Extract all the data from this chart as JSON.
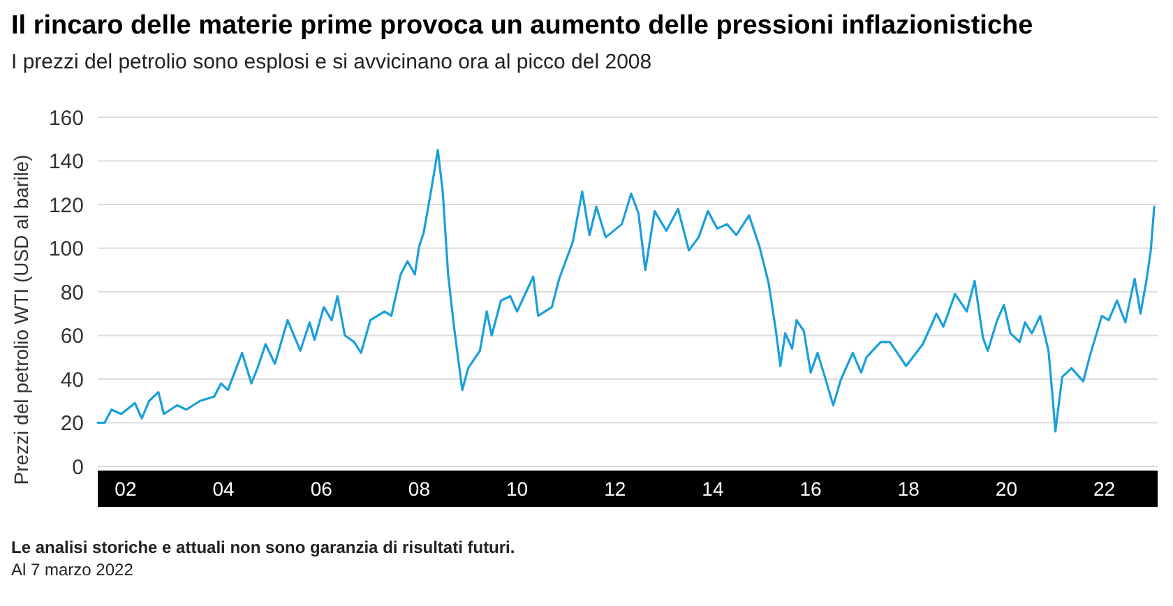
{
  "chart_data": {
    "type": "line",
    "title": "Il rincaro delle materie prime provoca un aumento delle pressioni inflazionistiche",
    "subtitle": "I prezzi del petrolio sono esplosi e si avvicinano ora al picco del 2008",
    "ylabel": "Prezzi del petrolio WTI (USD al barile)",
    "x": [
      2001.43,
      2001.57,
      2001.71,
      2001.91,
      2002.19,
      2002.33,
      2002.48,
      2002.67,
      2002.78,
      2003.05,
      2003.24,
      2003.52,
      2003.81,
      2003.95,
      2004.09,
      2004.38,
      2004.57,
      2004.71,
      2004.86,
      2005.05,
      2005.31,
      2005.57,
      2005.76,
      2005.86,
      2006.05,
      2006.21,
      2006.33,
      2006.48,
      2006.67,
      2006.81,
      2007.0,
      2007.29,
      2007.43,
      2007.62,
      2007.76,
      2007.91,
      2008.0,
      2008.09,
      2008.24,
      2008.38,
      2008.48,
      2008.59,
      2008.71,
      2008.88,
      2009.0,
      2009.24,
      2009.38,
      2009.48,
      2009.67,
      2009.86,
      2010.0,
      2010.33,
      2010.43,
      2010.71,
      2010.86,
      2011.14,
      2011.33,
      2011.48,
      2011.62,
      2011.81,
      2012.14,
      2012.33,
      2012.48,
      2012.62,
      2012.81,
      2013.05,
      2013.29,
      2013.51,
      2013.71,
      2013.9,
      2014.09,
      2014.29,
      2014.48,
      2014.74,
      2014.95,
      2015.14,
      2015.29,
      2015.38,
      2015.48,
      2015.62,
      2015.71,
      2015.86,
      2016.0,
      2016.14,
      2016.29,
      2016.46,
      2016.62,
      2016.86,
      2017.03,
      2017.14,
      2017.43,
      2017.62,
      2017.95,
      2018.29,
      2018.57,
      2018.71,
      2018.95,
      2019.19,
      2019.35,
      2019.52,
      2019.62,
      2019.81,
      2019.95,
      2020.08,
      2020.27,
      2020.38,
      2020.52,
      2020.69,
      2020.86,
      2020.95,
      2021.0,
      2021.14,
      2021.33,
      2021.57,
      2021.71,
      2021.95,
      2022.09,
      2022.26,
      2022.43,
      2022.62,
      2022.74,
      2022.86,
      2022.95,
      2023.02
    ],
    "series": [
      {
        "color": "#1a9fdb",
        "values": [
          20,
          20,
          26,
          24,
          29,
          22,
          30,
          34,
          24,
          28,
          26,
          30,
          32,
          38,
          35,
          52,
          38,
          46,
          56,
          47,
          67,
          53,
          66,
          58,
          73,
          67,
          78,
          60,
          57,
          52,
          67,
          71,
          69,
          88,
          94,
          88,
          101,
          107,
          126,
          145,
          126,
          88,
          64,
          35,
          45,
          53,
          71,
          60,
          76,
          78,
          71,
          87,
          69,
          73,
          86,
          103,
          126,
          106,
          119,
          105,
          111,
          125,
          116,
          90,
          117,
          108,
          118,
          99,
          105,
          117,
          109,
          111,
          106,
          115,
          101,
          84,
          62,
          46,
          61,
          54,
          67,
          62,
          43,
          52,
          41,
          28,
          40,
          52,
          43,
          50,
          57,
          57,
          46,
          56,
          70,
          64,
          79,
          71,
          85,
          59,
          53,
          67,
          74,
          61,
          57,
          66,
          61,
          69,
          53,
          30,
          16,
          41,
          45,
          39,
          51,
          69,
          67,
          76,
          66,
          86,
          70,
          85,
          99,
          119
        ]
      }
    ],
    "xlim": [
      2001.43,
      2023.09
    ],
    "xticks": [
      {
        "value": 2002,
        "label": "02"
      },
      {
        "value": 2004,
        "label": "04"
      },
      {
        "value": 2006,
        "label": "06"
      },
      {
        "value": 2008,
        "label": "08"
      },
      {
        "value": 2010,
        "label": "10"
      },
      {
        "value": 2012,
        "label": "12"
      },
      {
        "value": 2014,
        "label": "14"
      },
      {
        "value": 2016,
        "label": "16"
      },
      {
        "value": 2018,
        "label": "18"
      },
      {
        "value": 2020,
        "label": "20"
      },
      {
        "value": 2022,
        "label": "22"
      }
    ],
    "ylim": [
      0,
      160
    ],
    "yticks": [
      0,
      20,
      40,
      60,
      80,
      100,
      120,
      140,
      160
    ],
    "grid": "y",
    "annotations": [
      "Le analisi storiche e attuali non sono garanzia di risultati futuri.",
      "Al 7 marzo 2022"
    ]
  }
}
